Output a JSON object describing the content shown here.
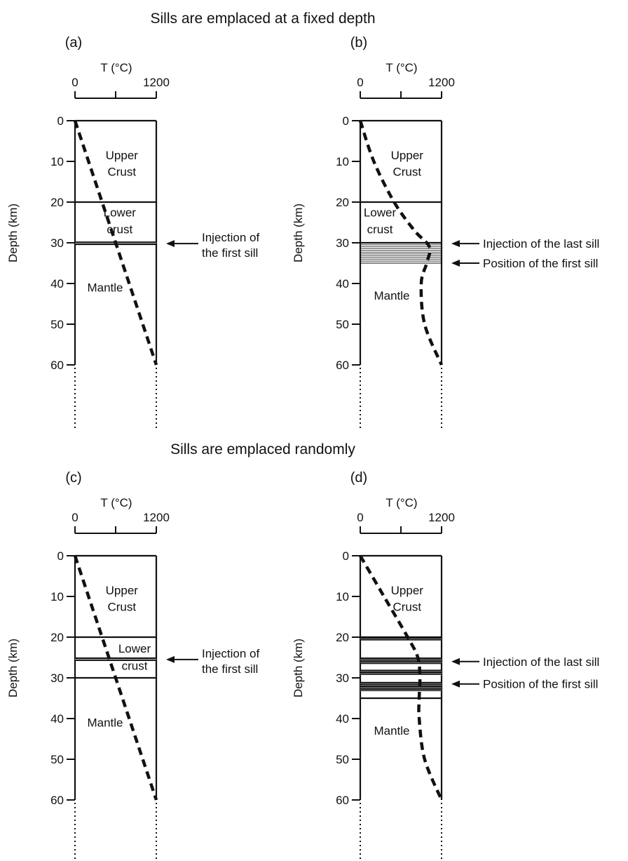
{
  "titles": {
    "top": "Sills are emplaced at a fixed depth",
    "bottom": "Sills are emplaced randomly"
  },
  "temperature_axis": {
    "label": "T (°C)",
    "ticks": [
      "0",
      "1200"
    ]
  },
  "depth_axis": {
    "label": "Depth (km)",
    "ticks": [
      "0",
      "10",
      "20",
      "30",
      "40",
      "50",
      "60"
    ]
  },
  "layer_labels": {
    "upper_crust_line1": "Upper",
    "upper_crust_line2": "Crust",
    "lower_crust_line1": "Lower",
    "lower_crust_line2": "crust",
    "mantle": "Mantle"
  },
  "panels": [
    {
      "id": "a",
      "tag": "(a)",
      "annotations": [
        {
          "text_lines": [
            "Injection of",
            "the first sill"
          ],
          "depth_km": 30.2
        }
      ],
      "lower_crust_base_km": 30,
      "sills_km": [
        30.2
      ],
      "geotherm": {
        "depth_km": [
          0,
          60
        ],
        "temp_c": [
          0,
          1200
        ]
      }
    },
    {
      "id": "b",
      "tag": "(b)",
      "annotations": [
        {
          "text_lines": [
            "Injection of the last sill"
          ],
          "depth_km": 30.2
        },
        {
          "text_lines": [
            "Position of the first sill"
          ],
          "depth_km": 35
        }
      ],
      "lower_crust_base_km": 30,
      "sill_zone_km": [
        30,
        35
      ],
      "geotherm": {
        "depth_km": [
          0,
          10,
          20,
          27,
          31,
          35,
          40,
          50,
          60
        ],
        "temp_c": [
          0,
          200,
          500,
          800,
          1020,
          980,
          900,
          950,
          1200
        ]
      }
    },
    {
      "id": "c",
      "tag": "(c)",
      "annotations": [
        {
          "text_lines": [
            "Injection of",
            "the first sill"
          ],
          "depth_km": 25.5
        }
      ],
      "lower_crust_base_km": 30,
      "sills_km": [
        25.5
      ],
      "geotherm": {
        "depth_km": [
          0,
          60
        ],
        "temp_c": [
          0,
          1200
        ]
      }
    },
    {
      "id": "d",
      "tag": "(d)",
      "annotations": [
        {
          "text_lines": [
            "Injection of the last sill"
          ],
          "depth_km": 26
        },
        {
          "text_lines": [
            "Position of the first sill"
          ],
          "depth_km": 31.5
        }
      ],
      "lower_crust_base_km": 35,
      "sill_bands_km": [
        [
          20,
          20.8
        ],
        [
          25,
          26.6
        ],
        [
          28,
          29.3
        ],
        [
          31,
          33.3
        ]
      ],
      "geotherm": {
        "depth_km": [
          0,
          10,
          20,
          25,
          30,
          35,
          40,
          50,
          60
        ],
        "temp_c": [
          0,
          350,
          700,
          850,
          880,
          870,
          870,
          950,
          1200
        ]
      }
    }
  ]
}
